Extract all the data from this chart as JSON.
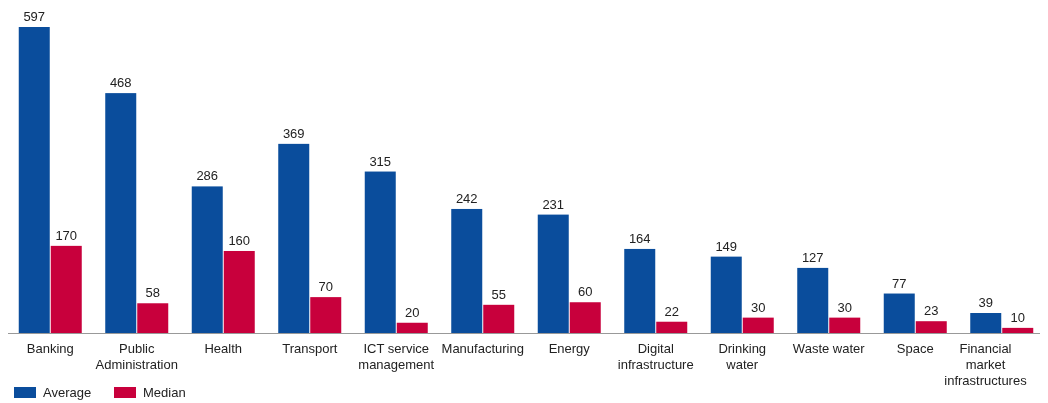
{
  "chart_data": {
    "type": "bar",
    "categories": [
      "Banking",
      "Public Administration",
      "Health",
      "Transport",
      "ICT service management",
      "Manufacturing",
      "Energy",
      "Digital infrastructure",
      "Drinking water",
      "Waste water",
      "Space",
      "Financial market infrastructures"
    ],
    "series": [
      {
        "name": "Average",
        "color": "#0a4d9c",
        "values": [
          597,
          468,
          286,
          369,
          315,
          242,
          231,
          164,
          149,
          127,
          77,
          39
        ]
      },
      {
        "name": "Median",
        "color": "#c8003c",
        "values": [
          170,
          58,
          160,
          70,
          20,
          55,
          60,
          22,
          30,
          30,
          23,
          10
        ]
      }
    ],
    "data_labels": true,
    "legend": "bottom left"
  }
}
